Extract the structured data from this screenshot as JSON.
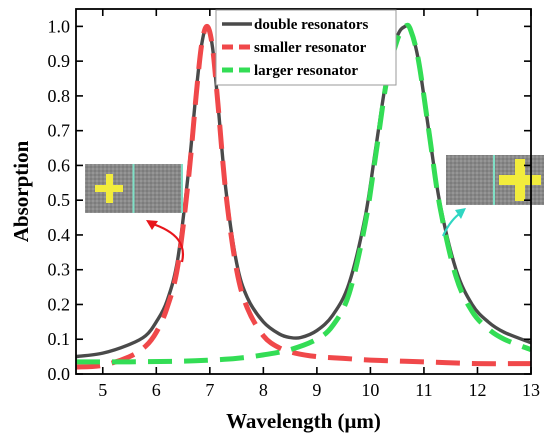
{
  "chart_data": {
    "type": "line",
    "xlabel": "Wavelength (μm)",
    "ylabel": "Absorption",
    "xlim": [
      4.5,
      13
    ],
    "ylim": [
      0,
      1.05
    ],
    "x_ticks": [
      "5",
      "6",
      "7",
      "8",
      "9",
      "10",
      "11",
      "12",
      "13"
    ],
    "y_ticks": [
      "0.0",
      "0.1",
      "0.2",
      "0.3",
      "0.4",
      "0.5",
      "0.6",
      "0.7",
      "0.8",
      "0.9",
      "1.0"
    ],
    "legend_position": "top-center",
    "series": [
      {
        "name": "double resonators",
        "color": "#4a4a4a",
        "style": "solid",
        "x": [
          4.5,
          5.0,
          5.5,
          5.8,
          6.0,
          6.2,
          6.4,
          6.6,
          6.75,
          6.85,
          6.95,
          7.05,
          7.15,
          7.3,
          7.5,
          7.7,
          8.0,
          8.3,
          8.5,
          8.7,
          9.0,
          9.3,
          9.6,
          9.9,
          10.1,
          10.3,
          10.5,
          10.65,
          10.75,
          10.9,
          11.1,
          11.3,
          11.6,
          11.9,
          12.2,
          12.5,
          13.0
        ],
        "y": [
          0.05,
          0.06,
          0.085,
          0.11,
          0.15,
          0.21,
          0.33,
          0.58,
          0.82,
          0.95,
          1.0,
          0.94,
          0.78,
          0.53,
          0.32,
          0.22,
          0.15,
          0.115,
          0.105,
          0.105,
          0.125,
          0.17,
          0.26,
          0.45,
          0.65,
          0.85,
          0.97,
          1.0,
          0.99,
          0.9,
          0.69,
          0.49,
          0.3,
          0.2,
          0.15,
          0.12,
          0.09
        ]
      },
      {
        "name": "smaller resonator",
        "color": "#f0484a",
        "style": "dashed",
        "x": [
          4.5,
          5.0,
          5.5,
          5.8,
          6.0,
          6.2,
          6.4,
          6.6,
          6.75,
          6.85,
          6.95,
          7.05,
          7.15,
          7.3,
          7.5,
          7.7,
          8.0,
          8.3,
          8.6,
          9.0,
          9.5,
          10.0,
          11.0,
          12.0,
          13.0
        ],
        "y": [
          0.02,
          0.025,
          0.05,
          0.08,
          0.12,
          0.19,
          0.31,
          0.56,
          0.81,
          0.95,
          1.0,
          0.94,
          0.78,
          0.52,
          0.3,
          0.19,
          0.11,
          0.075,
          0.06,
          0.05,
          0.045,
          0.04,
          0.035,
          0.03,
          0.03
        ]
      },
      {
        "name": "larger resonator",
        "color": "#33dd55",
        "style": "dashed",
        "x": [
          4.5,
          5.5,
          6.5,
          7.0,
          7.5,
          8.0,
          8.5,
          9.0,
          9.3,
          9.6,
          9.9,
          10.1,
          10.3,
          10.5,
          10.65,
          10.75,
          10.9,
          11.1,
          11.3,
          11.6,
          11.9,
          12.2,
          12.5,
          13.0
        ],
        "y": [
          0.035,
          0.035,
          0.037,
          0.04,
          0.045,
          0.055,
          0.07,
          0.1,
          0.14,
          0.23,
          0.43,
          0.63,
          0.84,
          0.96,
          1.0,
          0.99,
          0.9,
          0.69,
          0.48,
          0.28,
          0.18,
          0.13,
          0.1,
          0.07
        ]
      }
    ]
  },
  "colors": {
    "unit_cell_gray": "#8a8a8a",
    "cross_yellow": "#f2ec3c",
    "cell_divider": "#7fe0c6",
    "left_arrow": "#e8151b",
    "right_arrow": "#2fd6c2"
  }
}
